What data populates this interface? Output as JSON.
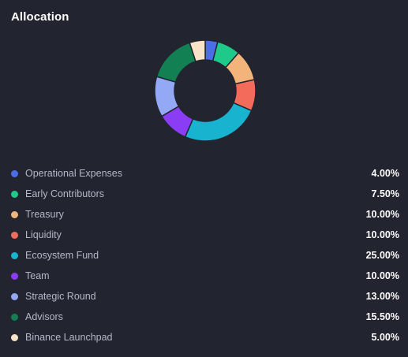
{
  "header": {
    "title": "Allocation"
  },
  "chart_data": {
    "type": "pie",
    "style": "donut",
    "start_angle": "top",
    "direction": "clockwise",
    "slices": [
      {
        "label": "Operational Expenses",
        "value": 4.0,
        "display": "4.00%",
        "color": "#4b6ee8"
      },
      {
        "label": "Early Contributors",
        "value": 7.5,
        "display": "7.50%",
        "color": "#1fc98a"
      },
      {
        "label": "Treasury",
        "value": 10.0,
        "display": "10.00%",
        "color": "#f2b47a"
      },
      {
        "label": "Liquidity",
        "value": 10.0,
        "display": "10.00%",
        "color": "#f36c5b"
      },
      {
        "label": "Ecosystem Fund",
        "value": 25.0,
        "display": "25.00%",
        "color": "#17b3cf"
      },
      {
        "label": "Team",
        "value": 10.0,
        "display": "10.00%",
        "color": "#8b3cf5"
      },
      {
        "label": "Strategic Round",
        "value": 13.0,
        "display": "13.00%",
        "color": "#94a9f5"
      },
      {
        "label": "Advisors",
        "value": 15.5,
        "display": "15.50%",
        "color": "#128052"
      },
      {
        "label": "Binance Launchpad",
        "value": 5.0,
        "display": "5.00%",
        "color": "#f8e3c8"
      }
    ]
  }
}
